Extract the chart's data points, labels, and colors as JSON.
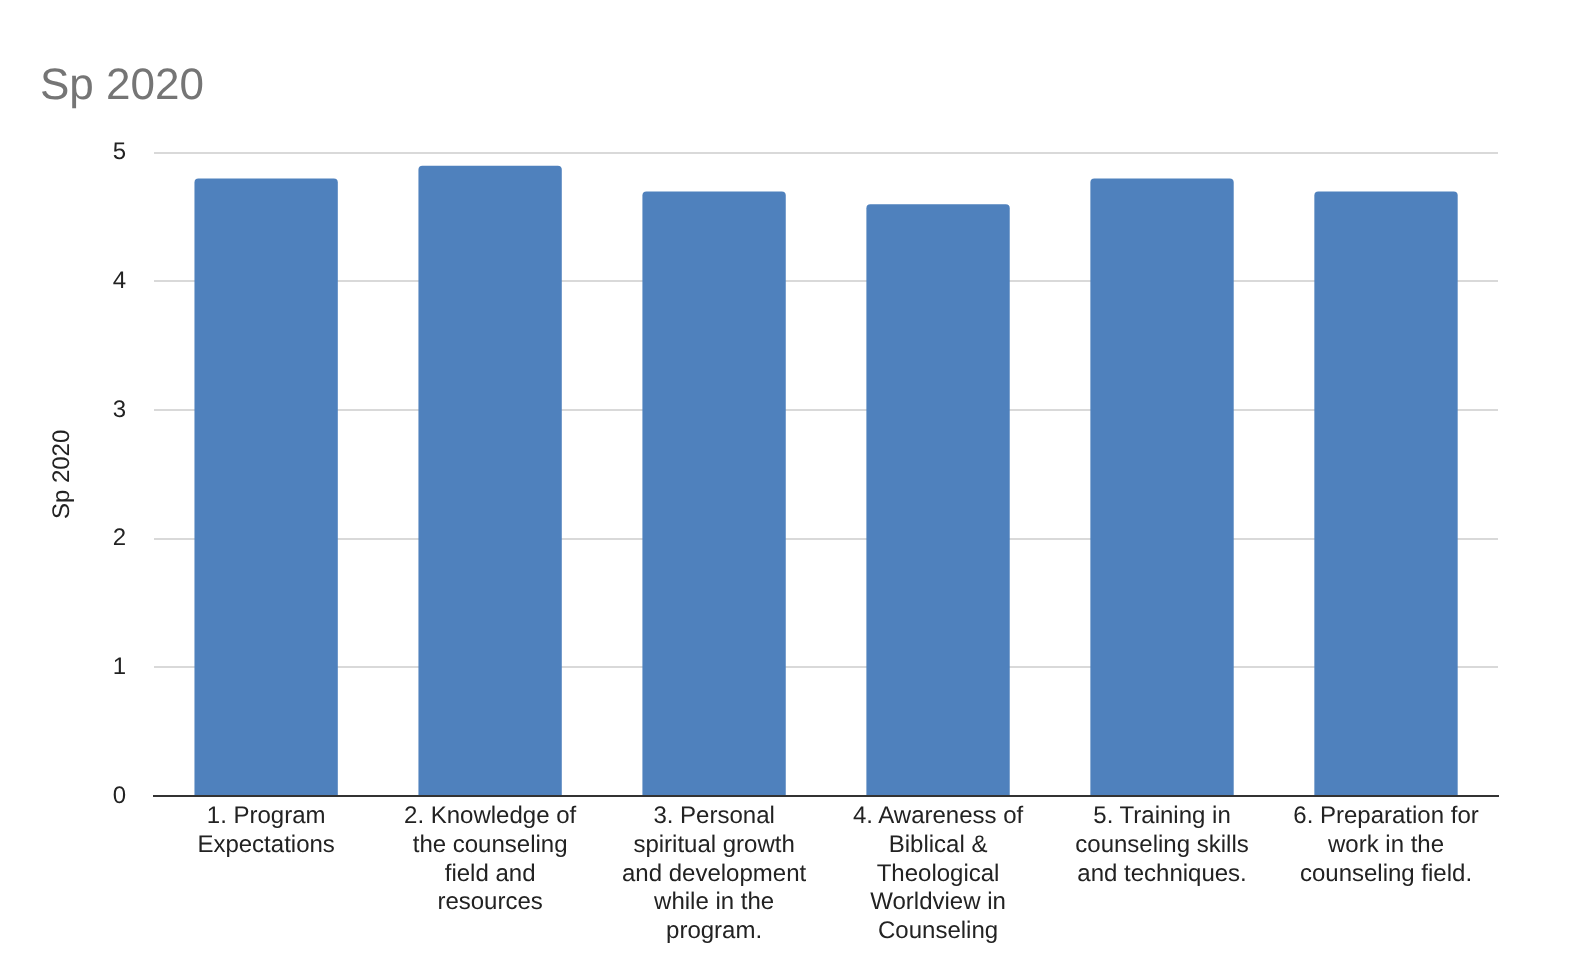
{
  "chart_data": {
    "type": "bar",
    "title": "Sp 2020",
    "ylabel": "Sp 2020",
    "categories": [
      "1. Program Expectations",
      "2. Knowledge of the counseling field and resources",
      "3. Personal spiritual growth and development while in the program.",
      "4. Awareness of Biblical & Theological Worldview in Counseling",
      "5. Training in counseling skills and techniques.",
      "6. Preparation for work in the counseling field."
    ],
    "values": [
      4.8,
      4.9,
      4.7,
      4.6,
      4.8,
      4.7
    ],
    "color": "#4f81bd",
    "ylim": [
      0,
      5
    ],
    "yticks": [
      0,
      1,
      2,
      3,
      4,
      5
    ],
    "grid": "y",
    "legend": false
  }
}
